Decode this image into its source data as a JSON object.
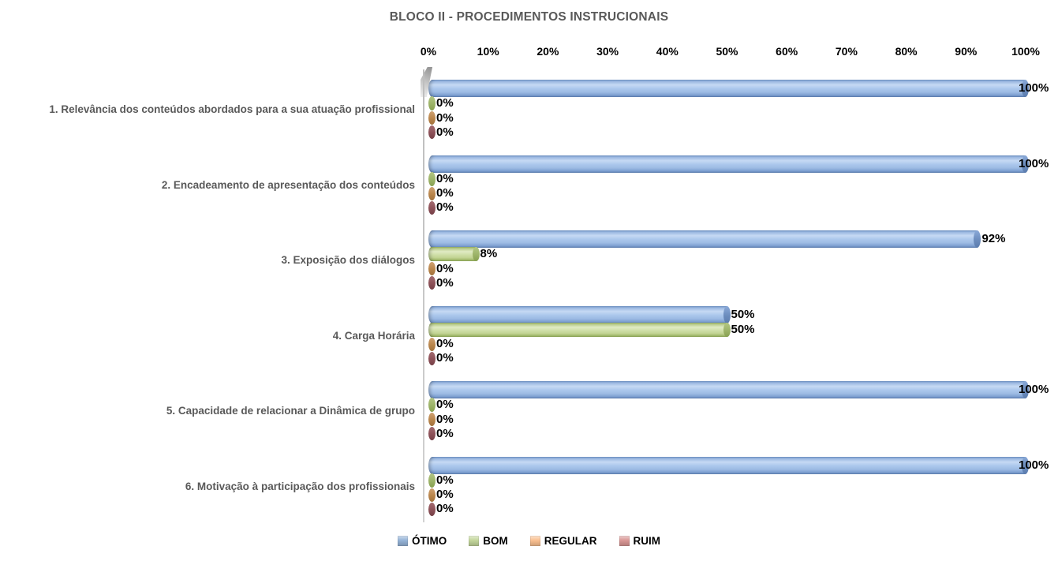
{
  "title": "BLOCO II - PROCEDIMENTOS INSTRUCIONAIS",
  "chart_data": {
    "type": "bar",
    "orientation": "horizontal",
    "style": "3d-cylinder",
    "title": "BLOCO II - PROCEDIMENTOS INSTRUCIONAIS",
    "x_axis": {
      "position": "top",
      "min": 0,
      "max": 100,
      "unit": "%",
      "ticks": [
        "0%",
        "10%",
        "20%",
        "30%",
        "40%",
        "50%",
        "60%",
        "70%",
        "80%",
        "90%",
        "100%"
      ]
    },
    "categories": [
      "1. Relevância dos conteúdos abordados para a sua atuação profissional",
      "2. Encadeamento de apresentação dos conteúdos",
      "3. Exposição dos diálogos",
      "4. Carga Horária",
      "5. Capacidade de relacionar a Dinâmica de grupo",
      "6. Motivação à participação dos profissionais"
    ],
    "series": [
      {
        "name": "ÓTIMO",
        "color": "#95B3D7",
        "values": [
          100,
          100,
          92,
          50,
          100,
          100
        ]
      },
      {
        "name": "BOM",
        "color": "#C3D69B",
        "values": [
          0,
          0,
          8,
          50,
          0,
          0
        ]
      },
      {
        "name": "REGULAR",
        "color": "#FAC090",
        "values": [
          0,
          0,
          0,
          0,
          0,
          0
        ]
      },
      {
        "name": "RUIM",
        "color": "#D99694",
        "values": [
          0,
          0,
          0,
          0,
          0,
          0
        ]
      }
    ],
    "data_labels": {
      "shown": true,
      "format": "percent",
      "position": "end-of-bar"
    },
    "legend": {
      "position": "bottom",
      "entries": [
        "ÓTIMO",
        "BOM",
        "REGULAR",
        "RUIM"
      ]
    },
    "grid": false,
    "background": "#FFFFFF",
    "title_color": "#595959",
    "category_label_color": "#595959",
    "label_color": "#000000"
  }
}
